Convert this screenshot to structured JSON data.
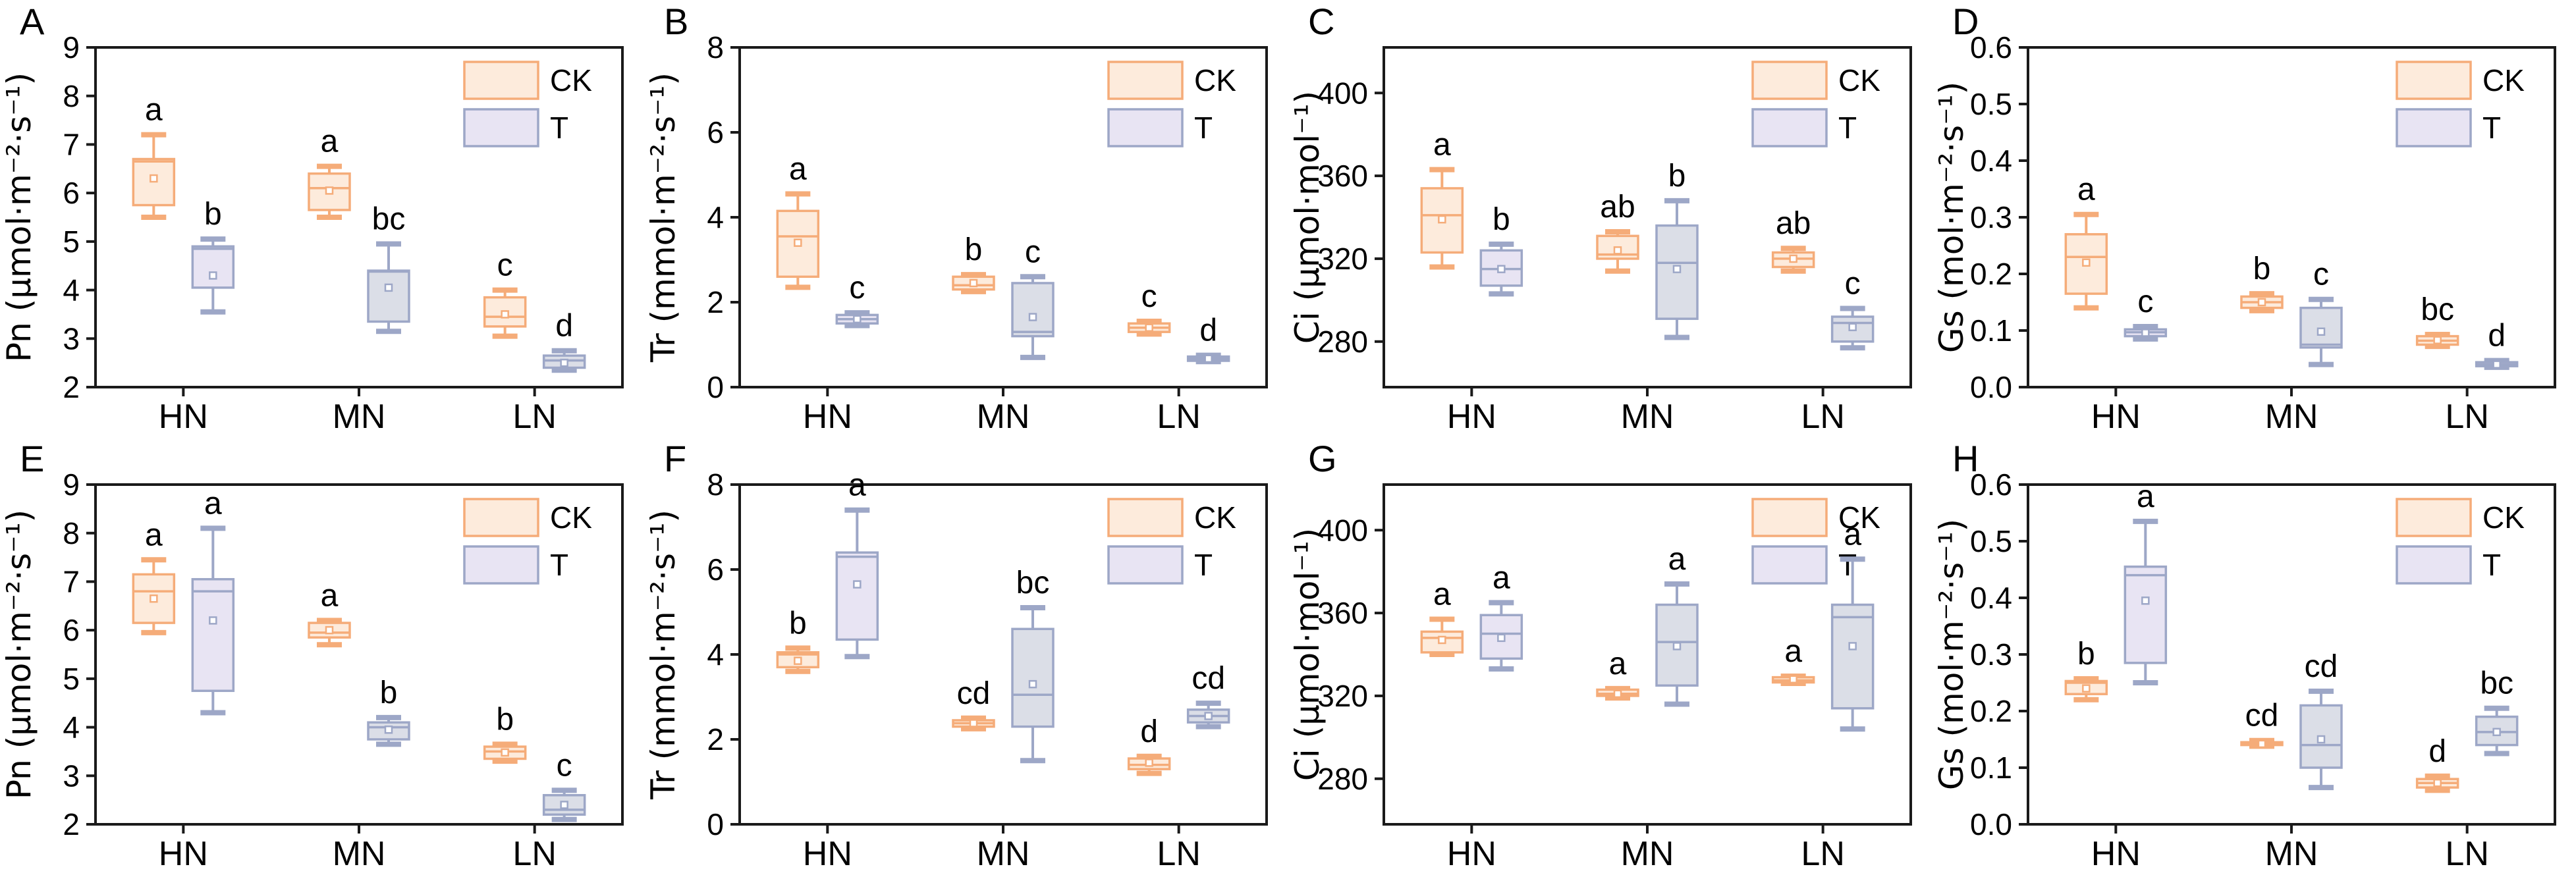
{
  "figure": {
    "background": "#ffffff",
    "rows": 2,
    "panels_per_row": 4
  },
  "colors": {
    "axis": "#1a1a1a",
    "letter_text": "#000000",
    "ck_fill": "#FDEBDC",
    "ck_stroke": "#F5AC79",
    "t_lavender_fill": "#E8E4F3",
    "t_gray_fill": "#DBDEE7",
    "t_stroke": "#9DA7C7"
  },
  "legend": {
    "ck_label": "CK",
    "t_label": "T"
  },
  "x_categories": [
    "HN",
    "MN",
    "LN"
  ],
  "chart_data": [
    {
      "id": "A",
      "type": "box",
      "ylabel": "Pn (μmol·m⁻²·s⁻¹)",
      "ylim": [
        2,
        9
      ],
      "yticks": [
        2,
        3,
        4,
        5,
        6,
        7,
        8,
        9
      ],
      "ytick_decimals": 0,
      "categories": [
        "HN",
        "MN",
        "LN"
      ],
      "boxes": [
        {
          "category": "HN",
          "series": "CK",
          "low": 5.5,
          "q1": 5.75,
          "median": 6.65,
          "q3": 6.7,
          "high": 7.2,
          "mean": 6.3,
          "letter": "a"
        },
        {
          "category": "HN",
          "series": "T",
          "variant": "lavender",
          "low": 3.55,
          "q1": 4.05,
          "median": 4.85,
          "q3": 4.9,
          "high": 5.05,
          "mean": 4.3,
          "letter": "b"
        },
        {
          "category": "MN",
          "series": "CK",
          "low": 5.5,
          "q1": 5.65,
          "median": 6.1,
          "q3": 6.4,
          "high": 6.55,
          "mean": 6.05,
          "letter": "a"
        },
        {
          "category": "MN",
          "series": "T",
          "variant": "gray",
          "low": 3.15,
          "q1": 3.35,
          "median": 4.38,
          "q3": 4.4,
          "high": 4.95,
          "mean": 4.05,
          "letter": "bc"
        },
        {
          "category": "LN",
          "series": "CK",
          "low": 3.05,
          "q1": 3.25,
          "median": 3.45,
          "q3": 3.85,
          "high": 4.0,
          "mean": 3.5,
          "letter": "c"
        },
        {
          "category": "LN",
          "series": "T",
          "variant": "gray",
          "low": 2.35,
          "q1": 2.4,
          "median": 2.55,
          "q3": 2.65,
          "high": 2.75,
          "mean": 2.5,
          "letter": "d"
        }
      ]
    },
    {
      "id": "B",
      "type": "box",
      "ylabel": "Tr (mmol·m⁻²·s⁻¹)",
      "ylim": [
        0,
        8
      ],
      "yticks": [
        0,
        2,
        4,
        6,
        8
      ],
      "ytick_decimals": 0,
      "categories": [
        "HN",
        "MN",
        "LN"
      ],
      "boxes": [
        {
          "category": "HN",
          "series": "CK",
          "low": 2.35,
          "q1": 2.6,
          "median": 3.55,
          "q3": 4.15,
          "high": 4.55,
          "mean": 3.4,
          "letter": "a"
        },
        {
          "category": "HN",
          "series": "T",
          "variant": "lavender",
          "low": 1.45,
          "q1": 1.5,
          "median": 1.6,
          "q3": 1.7,
          "high": 1.75,
          "mean": 1.6,
          "letter": "c"
        },
        {
          "category": "MN",
          "series": "CK",
          "low": 2.25,
          "q1": 2.3,
          "median": 2.4,
          "q3": 2.6,
          "high": 2.65,
          "mean": 2.45,
          "letter": "b"
        },
        {
          "category": "MN",
          "series": "T",
          "variant": "gray",
          "low": 0.7,
          "q1": 1.2,
          "median": 1.3,
          "q3": 2.45,
          "high": 2.6,
          "mean": 1.65,
          "letter": "c"
        },
        {
          "category": "LN",
          "series": "CK",
          "low": 1.25,
          "q1": 1.3,
          "median": 1.4,
          "q3": 1.5,
          "high": 1.55,
          "mean": 1.4,
          "letter": "c"
        },
        {
          "category": "LN",
          "series": "T",
          "variant": "gray",
          "low": 0.6,
          "q1": 0.62,
          "median": 0.67,
          "q3": 0.72,
          "high": 0.75,
          "mean": 0.67,
          "letter": "d"
        }
      ]
    },
    {
      "id": "C",
      "type": "box",
      "ylabel": "Ci (μmol·mol⁻¹)",
      "ylim": [
        258,
        422
      ],
      "yticks": [
        280,
        320,
        360,
        400
      ],
      "ytick_decimals": 0,
      "categories": [
        "HN",
        "MN",
        "LN"
      ],
      "boxes": [
        {
          "category": "HN",
          "series": "CK",
          "low": 316,
          "q1": 323,
          "median": 341,
          "q3": 354,
          "high": 363,
          "mean": 339,
          "letter": "a"
        },
        {
          "category": "HN",
          "series": "T",
          "variant": "lavender",
          "low": 303,
          "q1": 307,
          "median": 315,
          "q3": 324,
          "high": 327,
          "mean": 315,
          "letter": "b"
        },
        {
          "category": "MN",
          "series": "CK",
          "low": 314,
          "q1": 320,
          "median": 322,
          "q3": 331,
          "high": 333,
          "mean": 324,
          "letter": "ab"
        },
        {
          "category": "MN",
          "series": "T",
          "variant": "gray",
          "low": 282,
          "q1": 291,
          "median": 318,
          "q3": 336,
          "high": 348,
          "mean": 315,
          "letter": "b"
        },
        {
          "category": "LN",
          "series": "CK",
          "low": 314,
          "q1": 316,
          "median": 320,
          "q3": 323,
          "high": 325,
          "mean": 320,
          "letter": "ab"
        },
        {
          "category": "LN",
          "series": "T",
          "variant": "gray",
          "low": 277,
          "q1": 280,
          "median": 289,
          "q3": 292,
          "high": 296,
          "mean": 287,
          "letter": "c"
        }
      ]
    },
    {
      "id": "D",
      "type": "box",
      "ylabel": "Gs (mol·m⁻²·s⁻¹)",
      "ylim": [
        0,
        0.6
      ],
      "yticks": [
        0.0,
        0.1,
        0.2,
        0.3,
        0.4,
        0.5,
        0.6
      ],
      "ytick_decimals": 1,
      "categories": [
        "HN",
        "MN",
        "LN"
      ],
      "boxes": [
        {
          "category": "HN",
          "series": "CK",
          "low": 0.14,
          "q1": 0.165,
          "median": 0.23,
          "q3": 0.27,
          "high": 0.305,
          "mean": 0.22,
          "letter": "a"
        },
        {
          "category": "HN",
          "series": "T",
          "variant": "lavender",
          "low": 0.085,
          "q1": 0.09,
          "median": 0.097,
          "q3": 0.102,
          "high": 0.107,
          "mean": 0.096,
          "letter": "c"
        },
        {
          "category": "MN",
          "series": "CK",
          "low": 0.135,
          "q1": 0.14,
          "median": 0.15,
          "q3": 0.16,
          "high": 0.165,
          "mean": 0.15,
          "letter": "b"
        },
        {
          "category": "MN",
          "series": "T",
          "variant": "gray",
          "low": 0.04,
          "q1": 0.07,
          "median": 0.075,
          "q3": 0.14,
          "high": 0.155,
          "mean": 0.098,
          "letter": "c"
        },
        {
          "category": "LN",
          "series": "CK",
          "low": 0.072,
          "q1": 0.075,
          "median": 0.082,
          "q3": 0.09,
          "high": 0.093,
          "mean": 0.083,
          "letter": "bc"
        },
        {
          "category": "LN",
          "series": "T",
          "variant": "gray",
          "low": 0.035,
          "q1": 0.037,
          "median": 0.04,
          "q3": 0.044,
          "high": 0.047,
          "mean": 0.04,
          "letter": "d"
        }
      ]
    },
    {
      "id": "E",
      "type": "box",
      "ylabel": "Pn (μmol·m⁻²·s⁻¹)",
      "ylim": [
        2,
        9
      ],
      "yticks": [
        2,
        3,
        4,
        5,
        6,
        7,
        8,
        9
      ],
      "ytick_decimals": 0,
      "categories": [
        "HN",
        "MN",
        "LN"
      ],
      "boxes": [
        {
          "category": "HN",
          "series": "CK",
          "low": 5.95,
          "q1": 6.15,
          "median": 6.8,
          "q3": 7.15,
          "high": 7.45,
          "mean": 6.65,
          "letter": "a"
        },
        {
          "category": "HN",
          "series": "T",
          "variant": "lavender",
          "low": 4.3,
          "q1": 4.75,
          "median": 6.8,
          "q3": 7.05,
          "high": 8.1,
          "mean": 6.2,
          "letter": "a"
        },
        {
          "category": "MN",
          "series": "CK",
          "low": 5.7,
          "q1": 5.85,
          "median": 5.95,
          "q3": 6.15,
          "high": 6.2,
          "mean": 6.0,
          "letter": "a"
        },
        {
          "category": "MN",
          "series": "T",
          "variant": "gray",
          "low": 3.65,
          "q1": 3.75,
          "median": 4.0,
          "q3": 4.1,
          "high": 4.2,
          "mean": 3.95,
          "letter": "b"
        },
        {
          "category": "LN",
          "series": "CK",
          "low": 3.3,
          "q1": 3.35,
          "median": 3.5,
          "q3": 3.6,
          "high": 3.65,
          "mean": 3.48,
          "letter": "b"
        },
        {
          "category": "LN",
          "series": "T",
          "variant": "gray",
          "low": 2.1,
          "q1": 2.2,
          "median": 2.3,
          "q3": 2.6,
          "high": 2.7,
          "mean": 2.4,
          "letter": "c"
        }
      ]
    },
    {
      "id": "F",
      "type": "box",
      "ylabel": "Tr (mmol·m⁻²·s⁻¹)",
      "ylim": [
        0,
        8
      ],
      "yticks": [
        0,
        2,
        4,
        6,
        8
      ],
      "ytick_decimals": 0,
      "categories": [
        "HN",
        "MN",
        "LN"
      ],
      "boxes": [
        {
          "category": "HN",
          "series": "CK",
          "low": 3.6,
          "q1": 3.7,
          "median": 4.0,
          "q3": 4.05,
          "high": 4.15,
          "mean": 3.85,
          "letter": "b"
        },
        {
          "category": "HN",
          "series": "T",
          "variant": "lavender",
          "low": 3.95,
          "q1": 4.35,
          "median": 6.3,
          "q3": 6.4,
          "high": 7.4,
          "mean": 5.65,
          "letter": "a"
        },
        {
          "category": "MN",
          "series": "CK",
          "low": 2.25,
          "q1": 2.3,
          "median": 2.38,
          "q3": 2.45,
          "high": 2.5,
          "mean": 2.38,
          "letter": "cd"
        },
        {
          "category": "MN",
          "series": "T",
          "variant": "gray",
          "low": 1.5,
          "q1": 2.3,
          "median": 3.05,
          "q3": 4.6,
          "high": 5.1,
          "mean": 3.3,
          "letter": "bc"
        },
        {
          "category": "LN",
          "series": "CK",
          "low": 1.2,
          "q1": 1.3,
          "median": 1.4,
          "q3": 1.55,
          "high": 1.6,
          "mean": 1.45,
          "letter": "d"
        },
        {
          "category": "LN",
          "series": "T",
          "variant": "gray",
          "low": 2.3,
          "q1": 2.4,
          "median": 2.55,
          "q3": 2.7,
          "high": 2.85,
          "mean": 2.55,
          "letter": "cd"
        }
      ]
    },
    {
      "id": "G",
      "type": "box",
      "ylabel": "Ci (μmol·mol⁻¹)",
      "ylim": [
        258,
        422
      ],
      "yticks": [
        280,
        320,
        360,
        400
      ],
      "ytick_decimals": 0,
      "categories": [
        "HN",
        "MN",
        "LN"
      ],
      "boxes": [
        {
          "category": "HN",
          "series": "CK",
          "low": 340,
          "q1": 341,
          "median": 348,
          "q3": 351,
          "high": 357,
          "mean": 347,
          "letter": "a"
        },
        {
          "category": "HN",
          "series": "T",
          "variant": "lavender",
          "low": 333,
          "q1": 338,
          "median": 350,
          "q3": 359,
          "high": 365,
          "mean": 348,
          "letter": "a"
        },
        {
          "category": "MN",
          "series": "CK",
          "low": 319,
          "q1": 320,
          "median": 321,
          "q3": 323,
          "high": 323.5,
          "mean": 321,
          "letter": "a"
        },
        {
          "category": "MN",
          "series": "T",
          "variant": "gray",
          "low": 316,
          "q1": 325,
          "median": 346,
          "q3": 364,
          "high": 374,
          "mean": 344,
          "letter": "a"
        },
        {
          "category": "LN",
          "series": "CK",
          "low": 326,
          "q1": 326.5,
          "median": 327.5,
          "q3": 329,
          "high": 329.5,
          "mean": 328,
          "letter": "a"
        },
        {
          "category": "LN",
          "series": "T",
          "variant": "gray",
          "low": 304,
          "q1": 314,
          "median": 358,
          "q3": 364,
          "high": 386,
          "mean": 344,
          "letter": "a"
        }
      ]
    },
    {
      "id": "H",
      "type": "box",
      "ylabel": "Gs (mol·m⁻²·s⁻¹)",
      "ylim": [
        0,
        0.6
      ],
      "yticks": [
        0.0,
        0.1,
        0.2,
        0.3,
        0.4,
        0.5,
        0.6
      ],
      "ytick_decimals": 1,
      "categories": [
        "HN",
        "MN",
        "LN"
      ],
      "boxes": [
        {
          "category": "HN",
          "series": "CK",
          "low": 0.22,
          "q1": 0.23,
          "median": 0.25,
          "q3": 0.253,
          "high": 0.257,
          "mean": 0.24,
          "letter": "b"
        },
        {
          "category": "HN",
          "series": "T",
          "variant": "lavender",
          "low": 0.25,
          "q1": 0.285,
          "median": 0.44,
          "q3": 0.455,
          "high": 0.535,
          "mean": 0.395,
          "letter": "a"
        },
        {
          "category": "MN",
          "series": "CK",
          "low": 0.138,
          "q1": 0.14,
          "median": 0.142,
          "q3": 0.145,
          "high": 0.148,
          "mean": 0.142,
          "letter": "cd"
        },
        {
          "category": "MN",
          "series": "T",
          "variant": "gray",
          "low": 0.065,
          "q1": 0.1,
          "median": 0.14,
          "q3": 0.21,
          "high": 0.235,
          "mean": 0.15,
          "letter": "cd"
        },
        {
          "category": "LN",
          "series": "CK",
          "low": 0.06,
          "q1": 0.065,
          "median": 0.073,
          "q3": 0.08,
          "high": 0.085,
          "mean": 0.073,
          "letter": "d"
        },
        {
          "category": "LN",
          "series": "T",
          "variant": "gray",
          "low": 0.125,
          "q1": 0.14,
          "median": 0.163,
          "q3": 0.19,
          "high": 0.205,
          "mean": 0.163,
          "letter": "bc"
        }
      ]
    }
  ]
}
